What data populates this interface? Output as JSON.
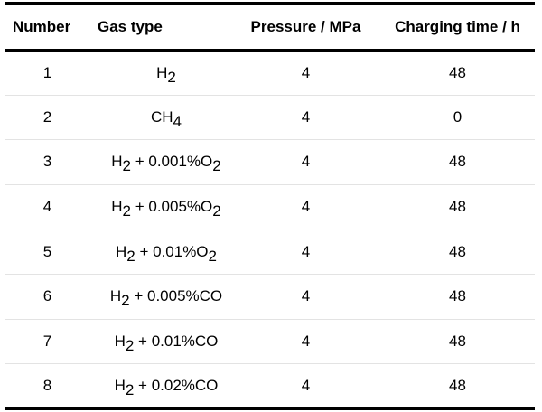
{
  "table": {
    "headers": [
      "Number",
      "Gas type",
      "Pressure / MPa",
      "Charging time / h"
    ],
    "rows": [
      {
        "number": "1",
        "gas": [
          {
            "t": "H"
          },
          {
            "s": "2"
          }
        ],
        "pressure": "4",
        "time": "48"
      },
      {
        "number": "2",
        "gas": [
          {
            "t": "CH"
          },
          {
            "s": "4"
          }
        ],
        "pressure": "4",
        "time": "0"
      },
      {
        "number": "3",
        "gas": [
          {
            "t": "H"
          },
          {
            "s": "2"
          },
          {
            "t": " + 0.001%O"
          },
          {
            "s": "2"
          }
        ],
        "pressure": "4",
        "time": "48"
      },
      {
        "number": "4",
        "gas": [
          {
            "t": "H"
          },
          {
            "s": "2"
          },
          {
            "t": " + 0.005%O"
          },
          {
            "s": "2"
          }
        ],
        "pressure": "4",
        "time": "48"
      },
      {
        "number": "5",
        "gas": [
          {
            "t": "H"
          },
          {
            "s": "2"
          },
          {
            "t": " + 0.01%O"
          },
          {
            "s": "2"
          }
        ],
        "pressure": "4",
        "time": "48"
      },
      {
        "number": "6",
        "gas": [
          {
            "t": "H"
          },
          {
            "s": "2"
          },
          {
            "t": " + 0.005%CO"
          }
        ],
        "pressure": "4",
        "time": "48"
      },
      {
        "number": "7",
        "gas": [
          {
            "t": "H"
          },
          {
            "s": "2"
          },
          {
            "t": " + 0.01%CO"
          }
        ],
        "pressure": "4",
        "time": "48"
      },
      {
        "number": "8",
        "gas": [
          {
            "t": "H"
          },
          {
            "s": "2"
          },
          {
            "t": " + 0.02%CO"
          }
        ],
        "pressure": "4",
        "time": "48"
      }
    ]
  }
}
